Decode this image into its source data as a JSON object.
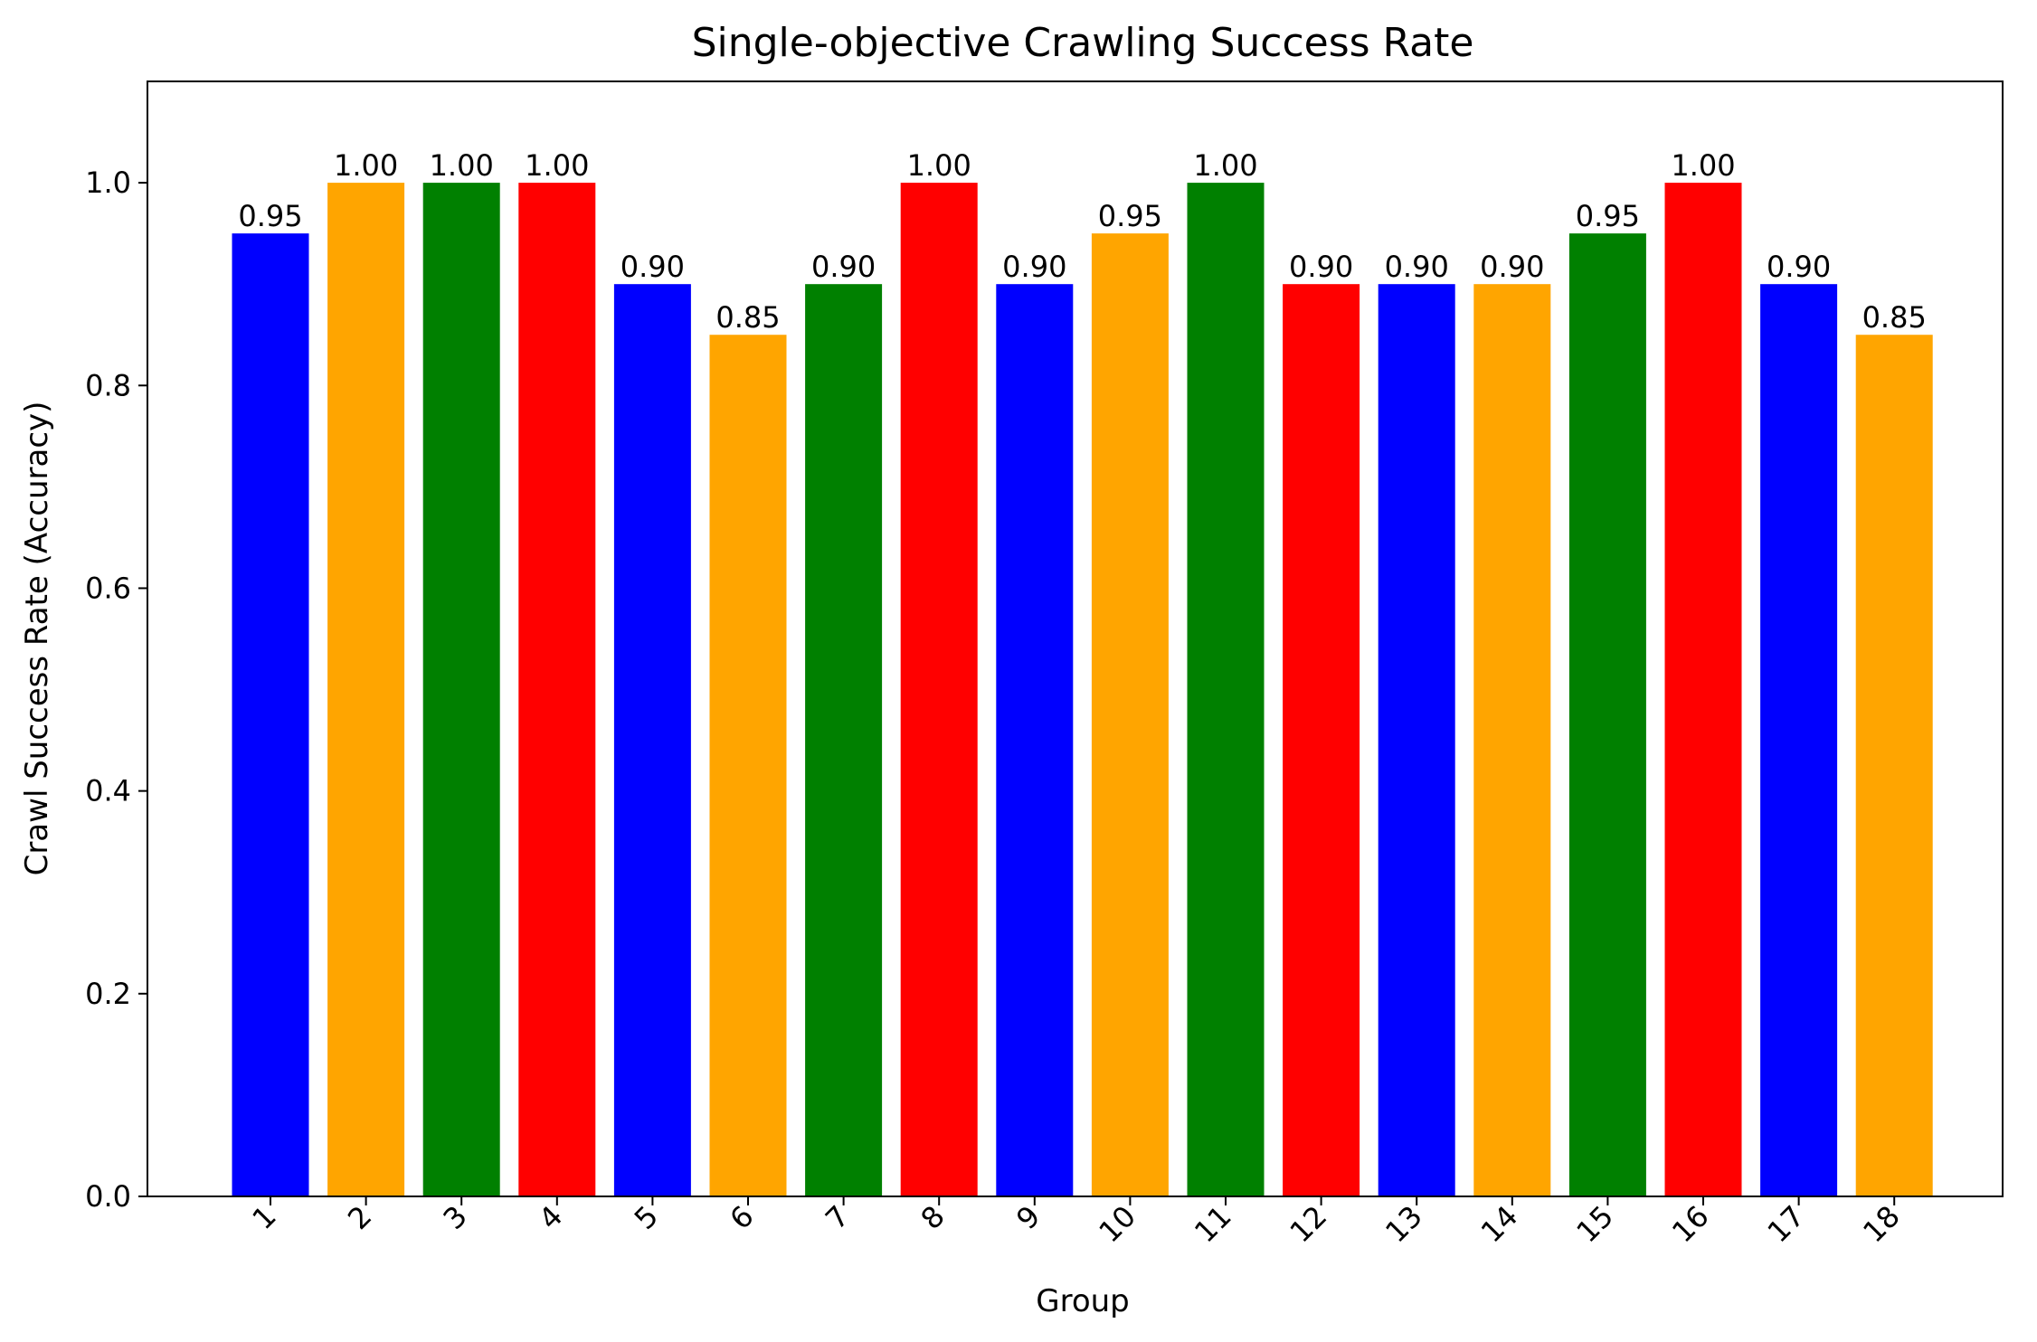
{
  "chart_data": {
    "type": "bar",
    "title": "Single-objective Crawling Success Rate",
    "xlabel": "Group",
    "ylabel": "Crawl Success Rate (Accuracy)",
    "categories": [
      "1",
      "2",
      "3",
      "4",
      "5",
      "6",
      "7",
      "8",
      "9",
      "10",
      "11",
      "12",
      "13",
      "14",
      "15",
      "16",
      "17",
      "18"
    ],
    "values": [
      0.95,
      1.0,
      1.0,
      1.0,
      0.9,
      0.85,
      0.9,
      1.0,
      0.9,
      0.95,
      1.0,
      0.9,
      0.9,
      0.9,
      0.95,
      1.0,
      0.9,
      0.85
    ],
    "value_labels": [
      "0.95",
      "1.00",
      "1.00",
      "1.00",
      "0.90",
      "0.85",
      "0.90",
      "1.00",
      "0.90",
      "0.95",
      "1.00",
      "0.90",
      "0.90",
      "0.90",
      "0.95",
      "1.00",
      "0.90",
      "0.85"
    ],
    "bar_colors": [
      "#0000ff",
      "#ffa500",
      "#008000",
      "#ff0000"
    ],
    "ylim": [
      0,
      1.1
    ],
    "yticks": [
      0.0,
      0.2,
      0.4,
      0.6,
      0.8,
      1.0
    ],
    "ytick_labels": [
      "0.0",
      "0.2",
      "0.4",
      "0.6",
      "0.8",
      "1.0"
    ],
    "grid": false,
    "xtick_rotation": "45"
  }
}
